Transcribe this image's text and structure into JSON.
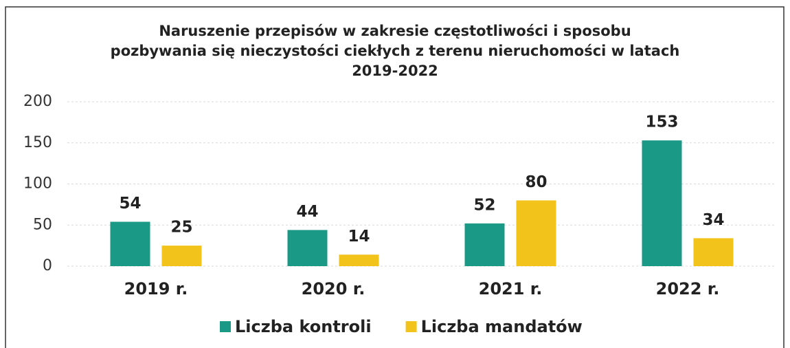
{
  "chart_data": {
    "type": "bar",
    "title": [
      "Naruszenie przepisów w zakresie częstotliwości i sposobu",
      "pozbywania się nieczystości ciekłych z terenu nieruchomości w latach",
      "2019-2022"
    ],
    "categories": [
      "2019 r.",
      "2020 r.",
      "2021 r.",
      "2022 r."
    ],
    "series": [
      {
        "name": "Liczba kontroli",
        "color": "#1a9a86",
        "values": [
          54,
          44,
          52,
          153
        ]
      },
      {
        "name": "Liczba mandatów",
        "color": "#f2c31a",
        "values": [
          25,
          14,
          80,
          34
        ]
      }
    ],
    "ylim": [
      0,
      200
    ],
    "yticks": [
      0,
      50,
      100,
      150,
      200
    ],
    "grid": true,
    "legend": "bottom"
  }
}
